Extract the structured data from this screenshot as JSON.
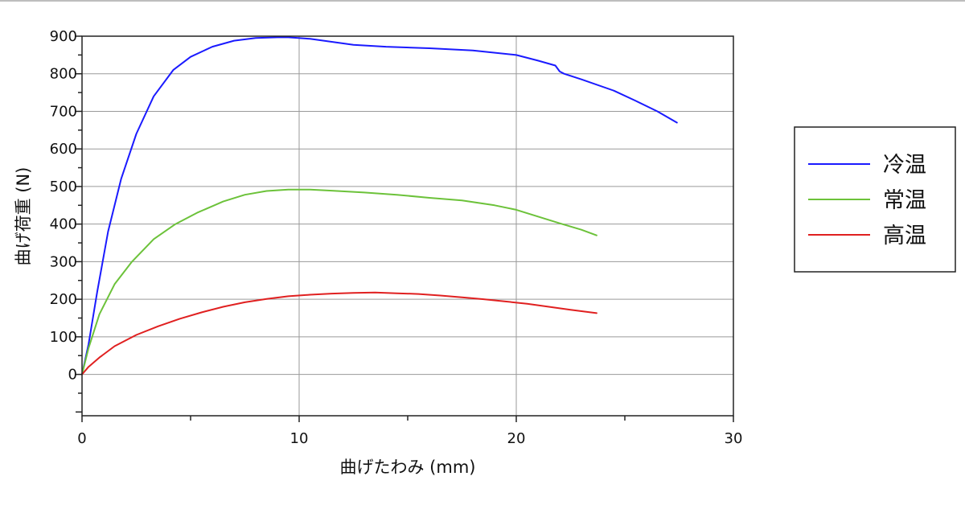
{
  "chart_data": {
    "type": "line",
    "title": "",
    "xlabel": "曲げたわみ (mm)",
    "ylabel": "曲げ荷重 (N)",
    "xlim": [
      0,
      30
    ],
    "ylim": [
      -110,
      900
    ],
    "x_ticks": [
      0,
      10,
      20,
      30
    ],
    "y_ticks": [
      0,
      100,
      200,
      300,
      400,
      500,
      600,
      700,
      800,
      900
    ],
    "x_tick_labels": [
      "0",
      "10",
      "20",
      "30"
    ],
    "y_tick_labels": [
      "0",
      "100",
      "200",
      "300",
      "400",
      "500",
      "600",
      "700",
      "800",
      "900"
    ],
    "grid": true,
    "legend_position": "right",
    "series": [
      {
        "name": "冷温",
        "color": "#1a1aff",
        "x": [
          0,
          0.3,
          0.7,
          1.2,
          1.8,
          2.5,
          3.3,
          4.2,
          5.0,
          6.0,
          7.0,
          8.0,
          9.0,
          9.5,
          10.5,
          11.5,
          12.5,
          14.0,
          16.0,
          18.0,
          20.0,
          21.0,
          21.8,
          22.0,
          22.2,
          23.0,
          24.5,
          25.5,
          26.5,
          27.4
        ],
        "y": [
          0,
          80,
          220,
          380,
          520,
          640,
          740,
          810,
          845,
          872,
          888,
          895,
          897,
          897,
          893,
          885,
          877,
          872,
          868,
          862,
          850,
          835,
          822,
          806,
          800,
          785,
          755,
          728,
          700,
          670
        ]
      },
      {
        "name": "常温",
        "color": "#6cc23a",
        "x": [
          0,
          0.3,
          0.8,
          1.5,
          2.3,
          3.3,
          4.3,
          5.3,
          6.5,
          7.5,
          8.5,
          9.5,
          10.5,
          11.5,
          13.0,
          14.5,
          16.0,
          17.5,
          19.0,
          20.0,
          21.0,
          22.0,
          23.0,
          23.7
        ],
        "y": [
          0,
          70,
          160,
          240,
          300,
          360,
          400,
          430,
          460,
          478,
          488,
          492,
          492,
          489,
          484,
          478,
          470,
          463,
          450,
          438,
          420,
          402,
          385,
          370
        ]
      },
      {
        "name": "高温",
        "color": "#e02020",
        "x": [
          0,
          0.3,
          0.8,
          1.5,
          2.5,
          3.5,
          4.5,
          5.5,
          6.5,
          7.5,
          8.5,
          9.5,
          10.5,
          11.5,
          12.5,
          13.5,
          14.5,
          15.5,
          16.5,
          17.5,
          18.5,
          19.5,
          20.5,
          21.5,
          22.5,
          23.7
        ],
        "y": [
          0,
          20,
          45,
          75,
          105,
          128,
          148,
          165,
          180,
          192,
          201,
          208,
          212,
          215,
          217,
          218,
          216,
          214,
          210,
          205,
          200,
          194,
          188,
          180,
          172,
          163
        ]
      }
    ]
  }
}
